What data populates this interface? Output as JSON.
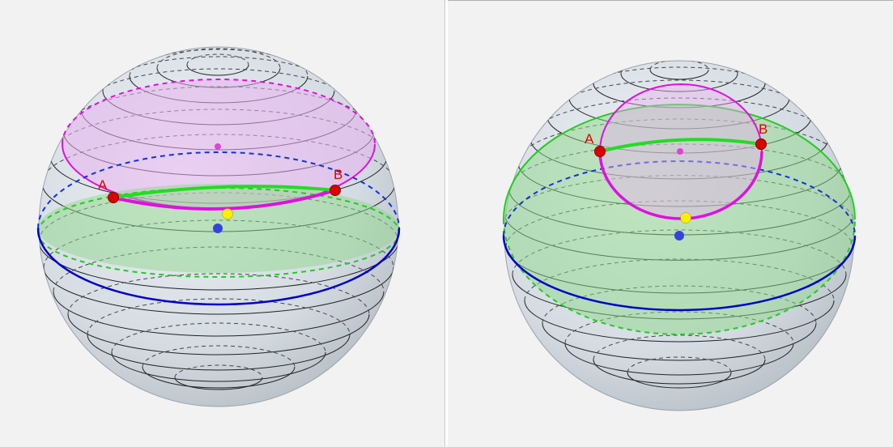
{
  "figure": {
    "panels": [
      {
        "id": "left",
        "point_labels": {
          "a": "A",
          "b": "B"
        }
      },
      {
        "id": "right",
        "point_labels": {
          "a": "A",
          "b": "B"
        }
      }
    ]
  },
  "colors": {
    "background": "#f2f2f2",
    "sphere_fill": "#c4ccd4",
    "latitude_lines": "#222222",
    "great_circle": "#0000cc",
    "small_circle": "#e010e0",
    "small_circle_fill": "#e8b0f0",
    "geodesic_arc": "#22cc22",
    "green_cap_fill": "#8fd88a",
    "endpoint": "#dd0000",
    "midpoint": "#ffee00",
    "center_point": "#3344dd",
    "small_circle_center": "#dd44dd",
    "label_color": "#dd0000"
  }
}
